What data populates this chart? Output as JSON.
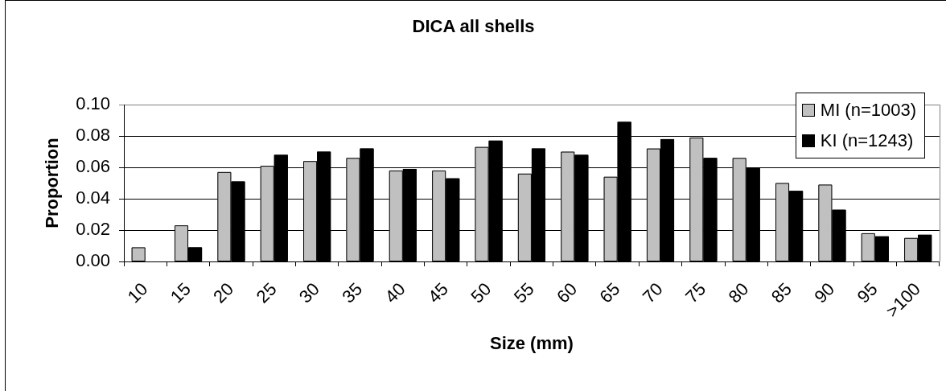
{
  "chart_data": {
    "type": "bar",
    "title": "DICA all shells",
    "xlabel": "Size (mm)",
    "ylabel": "Proportion",
    "categories": [
      "10",
      "15",
      "20",
      "25",
      "30",
      "35",
      "40",
      "45",
      "50",
      "55",
      "60",
      "65",
      "70",
      "75",
      "80",
      "85",
      "90",
      "95",
      ">100"
    ],
    "series": [
      {
        "name": "MI (n=1003)",
        "color": "#c0c0c0",
        "values": [
          0.009,
          0.023,
          0.057,
          0.061,
          0.064,
          0.066,
          0.058,
          0.058,
          0.073,
          0.056,
          0.07,
          0.054,
          0.072,
          0.079,
          0.066,
          0.05,
          0.049,
          0.018,
          0.015
        ]
      },
      {
        "name": "KI (n=1243)",
        "color": "#000000",
        "values": [
          0,
          0.009,
          0.051,
          0.068,
          0.07,
          0.072,
          0.059,
          0.053,
          0.077,
          0.072,
          0.068,
          0.089,
          0.078,
          0.066,
          0.06,
          0.045,
          0.033,
          0.016,
          0.017
        ]
      }
    ],
    "ylim": [
      0,
      0.1
    ],
    "yticks": [
      {
        "value": 0,
        "label": "0.00"
      },
      {
        "value": 0.02,
        "label": "0.02"
      },
      {
        "value": 0.04,
        "label": "0.04"
      },
      {
        "value": 0.06,
        "label": "0.06"
      },
      {
        "value": 0.08,
        "label": "0.08"
      },
      {
        "value": 0.1,
        "label": "0.10"
      }
    ],
    "grid": "y",
    "legend": "top right"
  }
}
